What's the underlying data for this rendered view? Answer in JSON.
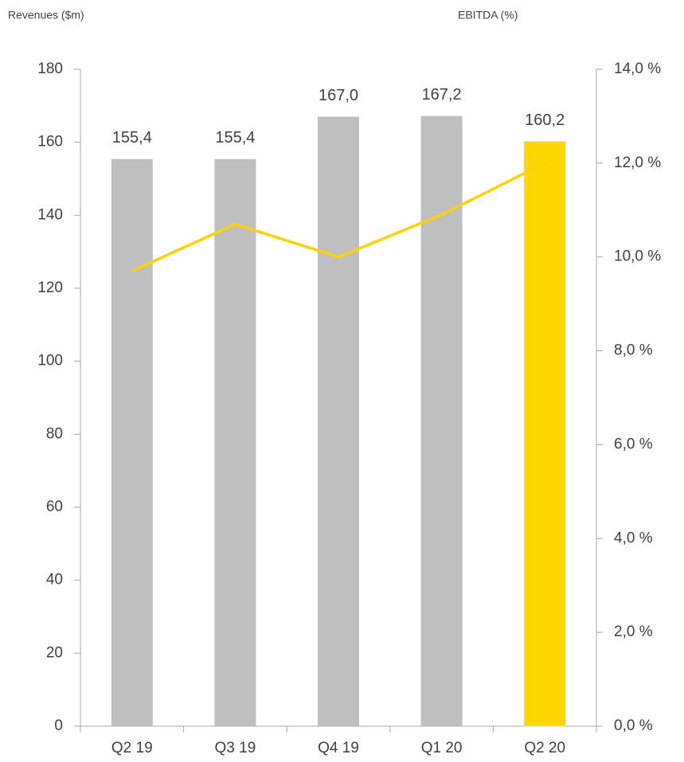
{
  "chart_data": {
    "type": "bar",
    "y_label": "Revenues ($m)",
    "y2_label": "EBITDA (%)",
    "categories": [
      "Q2 19",
      "Q3 19",
      "Q4 19",
      "Q1 20",
      "Q2 20"
    ],
    "series": [
      {
        "type": "bar",
        "colors": [
          "#bfbfbf",
          "#bfbfbf",
          "#bfbfbf",
          "#bfbfbf",
          "#ffd700"
        ],
        "values": [
          155.4,
          155.4,
          167.0,
          167.2,
          160.2
        ],
        "value_labels": [
          "155,4",
          "155,4",
          "167,0",
          "167,2",
          "160,2"
        ]
      },
      {
        "type": "line",
        "axis": "y2",
        "color": "#ffd200",
        "values": [
          9.7,
          10.7,
          10.0,
          10.9,
          12.0
        ]
      }
    ],
    "ylim": [
      0,
      180
    ],
    "yticks": [
      0,
      20,
      40,
      60,
      80,
      100,
      120,
      140,
      160,
      180
    ],
    "y2lim": [
      0,
      14
    ],
    "y2ticks": [
      {
        "value": 0,
        "label": "0,0 %"
      },
      {
        "value": 2,
        "label": "2,0 %"
      },
      {
        "value": 4,
        "label": "4,0 %"
      },
      {
        "value": 6,
        "label": "6,0 %"
      },
      {
        "value": 8,
        "label": "8,0 %"
      },
      {
        "value": 10,
        "label": "10,0 %"
      },
      {
        "value": 12,
        "label": "12,0 %"
      },
      {
        "value": 14,
        "label": "14,0 %"
      }
    ]
  }
}
